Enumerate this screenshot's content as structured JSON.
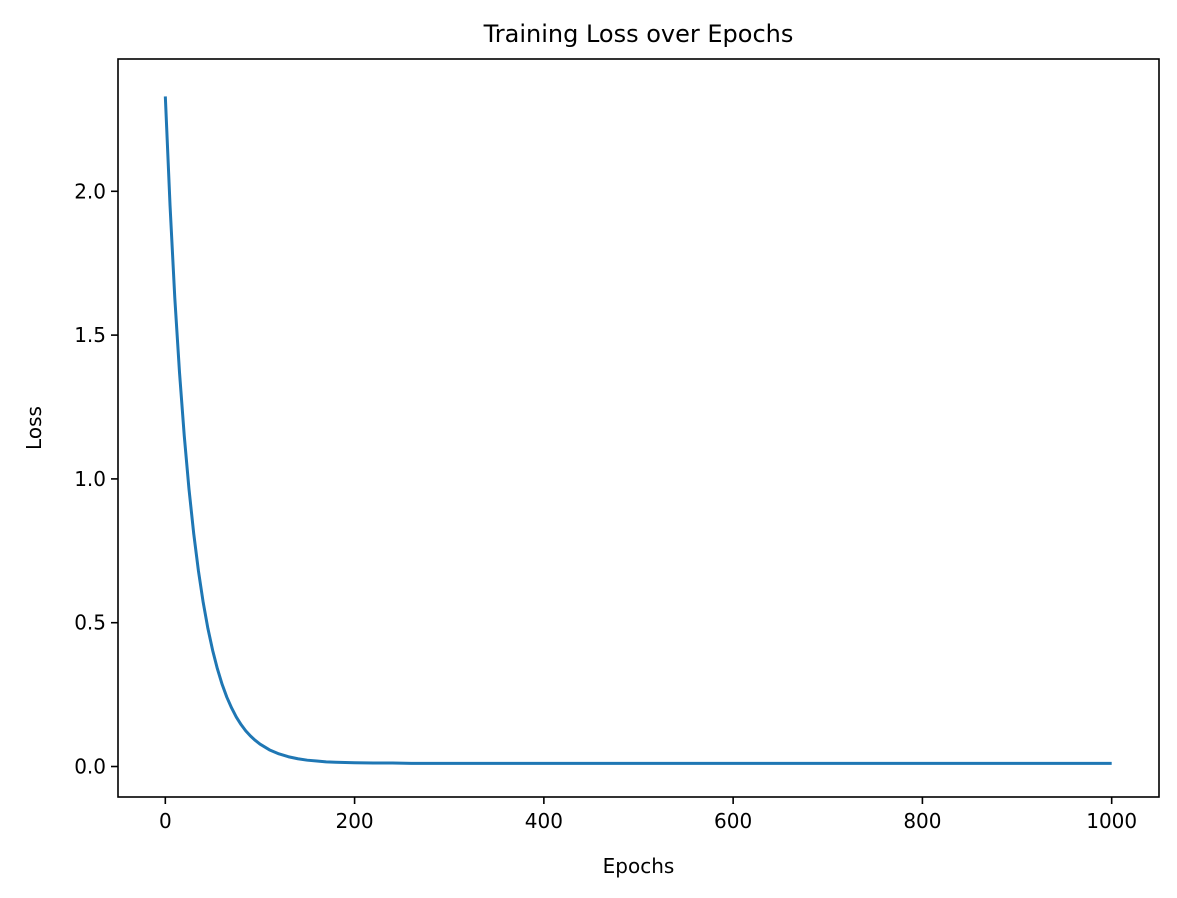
{
  "chart_data": {
    "type": "line",
    "title": "Training Loss over Epochs",
    "xlabel": "Epochs",
    "ylabel": "Loss",
    "xlim": [
      -50,
      1050
    ],
    "ylim": [
      -0.106,
      2.46
    ],
    "xticks": [
      0,
      200,
      400,
      600,
      800,
      1000
    ],
    "xtick_labels": [
      "0",
      "200",
      "400",
      "600",
      "800",
      "1000"
    ],
    "yticks": [
      0.0,
      0.5,
      1.0,
      1.5,
      2.0
    ],
    "ytick_labels": [
      "0.0",
      "0.5",
      "1.0",
      "1.5",
      "2.0"
    ],
    "grid": false,
    "series": [
      {
        "color": "#1f77b4",
        "x": [
          0,
          5,
          10,
          15,
          20,
          25,
          30,
          35,
          40,
          45,
          50,
          55,
          60,
          65,
          70,
          75,
          80,
          85,
          90,
          95,
          100,
          110,
          120,
          130,
          140,
          150,
          160,
          170,
          180,
          190,
          200,
          220,
          240,
          260,
          280,
          300,
          350,
          400,
          450,
          500,
          550,
          600,
          650,
          700,
          750,
          800,
          850,
          900,
          950,
          1000
        ],
        "y": [
          2.33,
          1.95,
          1.63,
          1.37,
          1.15,
          0.965,
          0.81,
          0.68,
          0.571,
          0.48,
          0.404,
          0.34,
          0.286,
          0.241,
          0.204,
          0.172,
          0.146,
          0.124,
          0.106,
          0.091,
          0.078,
          0.058,
          0.044,
          0.034,
          0.027,
          0.022,
          0.019,
          0.016,
          0.015,
          0.014,
          0.013,
          0.012,
          0.012,
          0.011,
          0.011,
          0.011,
          0.011,
          0.011,
          0.011,
          0.011,
          0.011,
          0.011,
          0.011,
          0.011,
          0.011,
          0.011,
          0.011,
          0.011,
          0.011,
          0.011
        ]
      }
    ]
  }
}
